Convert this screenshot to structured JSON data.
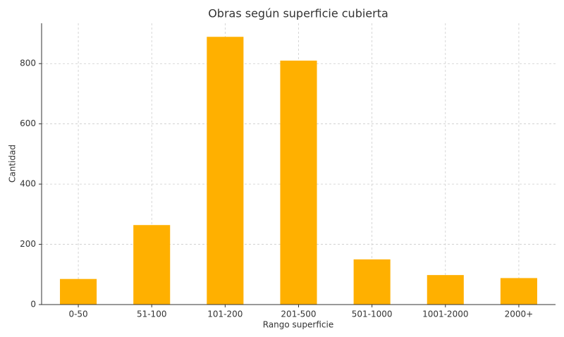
{
  "chart_data": {
    "type": "bar",
    "title": "Obras según superficie cubierta",
    "x_label": "Rango superficie",
    "y_label": "Cantidad",
    "categories": [
      "0-50",
      "51-100",
      "101-200",
      "201-500",
      "501-1000",
      "1001-2000",
      "2000+"
    ],
    "values": [
      85,
      264,
      889,
      810,
      150,
      98,
      88
    ],
    "color": "#ffb000",
    "ylim": [
      0,
      934
    ],
    "yticks": [
      0,
      200,
      400,
      600,
      800
    ],
    "grid": true
  }
}
